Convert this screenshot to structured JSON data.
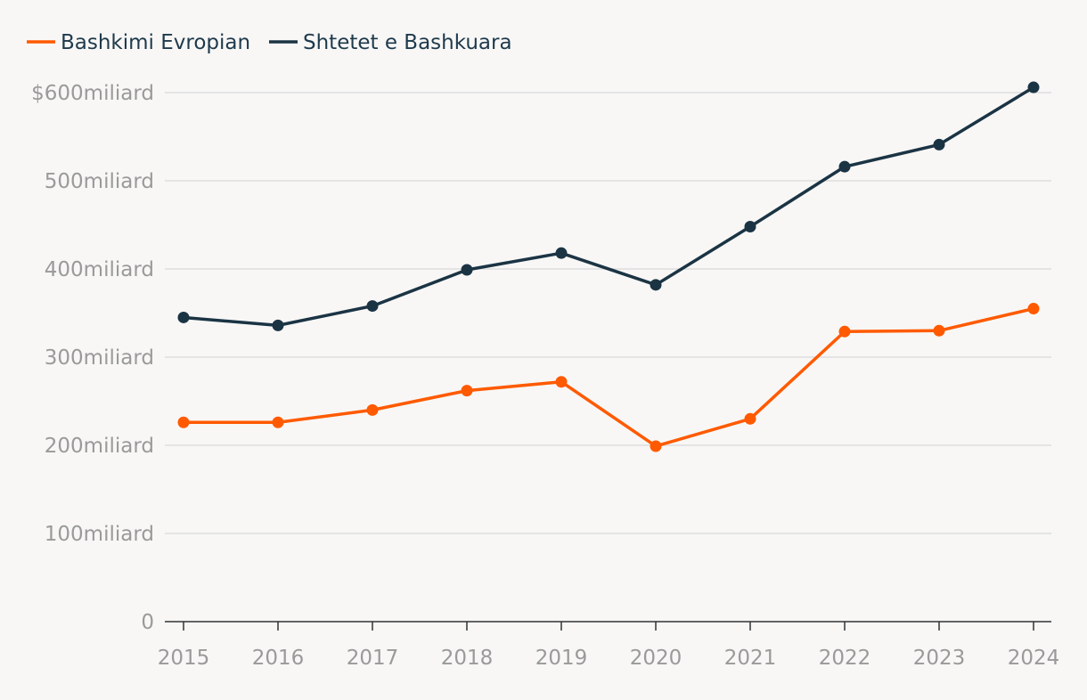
{
  "chart_data": {
    "type": "line",
    "title": "",
    "xlabel": "",
    "ylabel": "",
    "x": [
      2015,
      2016,
      2017,
      2018,
      2019,
      2020,
      2021,
      2022,
      2023,
      2024
    ],
    "x_tick_labels": [
      "2015",
      "2016",
      "2017",
      "2018",
      "2019",
      "2020",
      "2021",
      "2022",
      "2023",
      "2024"
    ],
    "ylim": [
      0,
      600
    ],
    "y_ticks": [
      0,
      100,
      200,
      300,
      400,
      500,
      600
    ],
    "y_tick_labels": [
      "0",
      "100miliard",
      "200miliard",
      "300miliard",
      "400miliard",
      "500miliard",
      "$600miliard"
    ],
    "grid": true,
    "legend_position": "top-left",
    "series": [
      {
        "name": "Bashkimi Evropian",
        "color": "#ff5a00",
        "values": [
          226,
          226,
          240,
          262,
          272,
          199,
          230,
          329,
          330,
          355
        ]
      },
      {
        "name": "Shtetet e Bashkuara",
        "color": "#1b3444",
        "values": [
          345,
          336,
          358,
          399,
          418,
          382,
          448,
          516,
          541,
          606
        ]
      }
    ],
    "colors": {
      "background": "#f8f7f6",
      "grid": "#dddddd",
      "axis": "#333333",
      "tick_text": "#9a9a9a",
      "legend_text": "#1e3a4c"
    }
  }
}
